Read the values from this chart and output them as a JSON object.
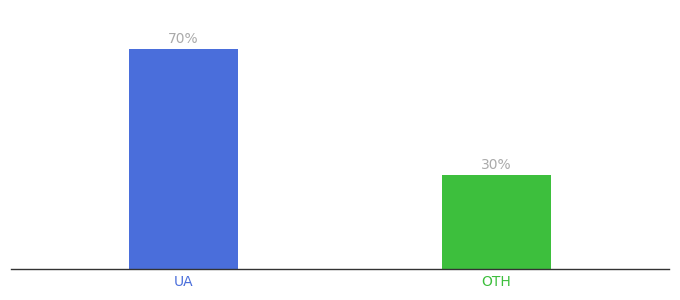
{
  "categories": [
    "UA",
    "OTH"
  ],
  "values": [
    70,
    30
  ],
  "bar_colors": [
    "#4a6edb",
    "#3dbf3d"
  ],
  "label_color": "#aaaaaa",
  "label_fontsize": 10,
  "tick_fontsize": 10,
  "background_color": "#ffffff",
  "ylim": [
    0,
    82
  ],
  "bar_width": 0.35,
  "xlabel_colors": [
    "#4a6edb",
    "#3dbf3d"
  ],
  "figsize": [
    6.8,
    3.0
  ],
  "dpi": 100
}
